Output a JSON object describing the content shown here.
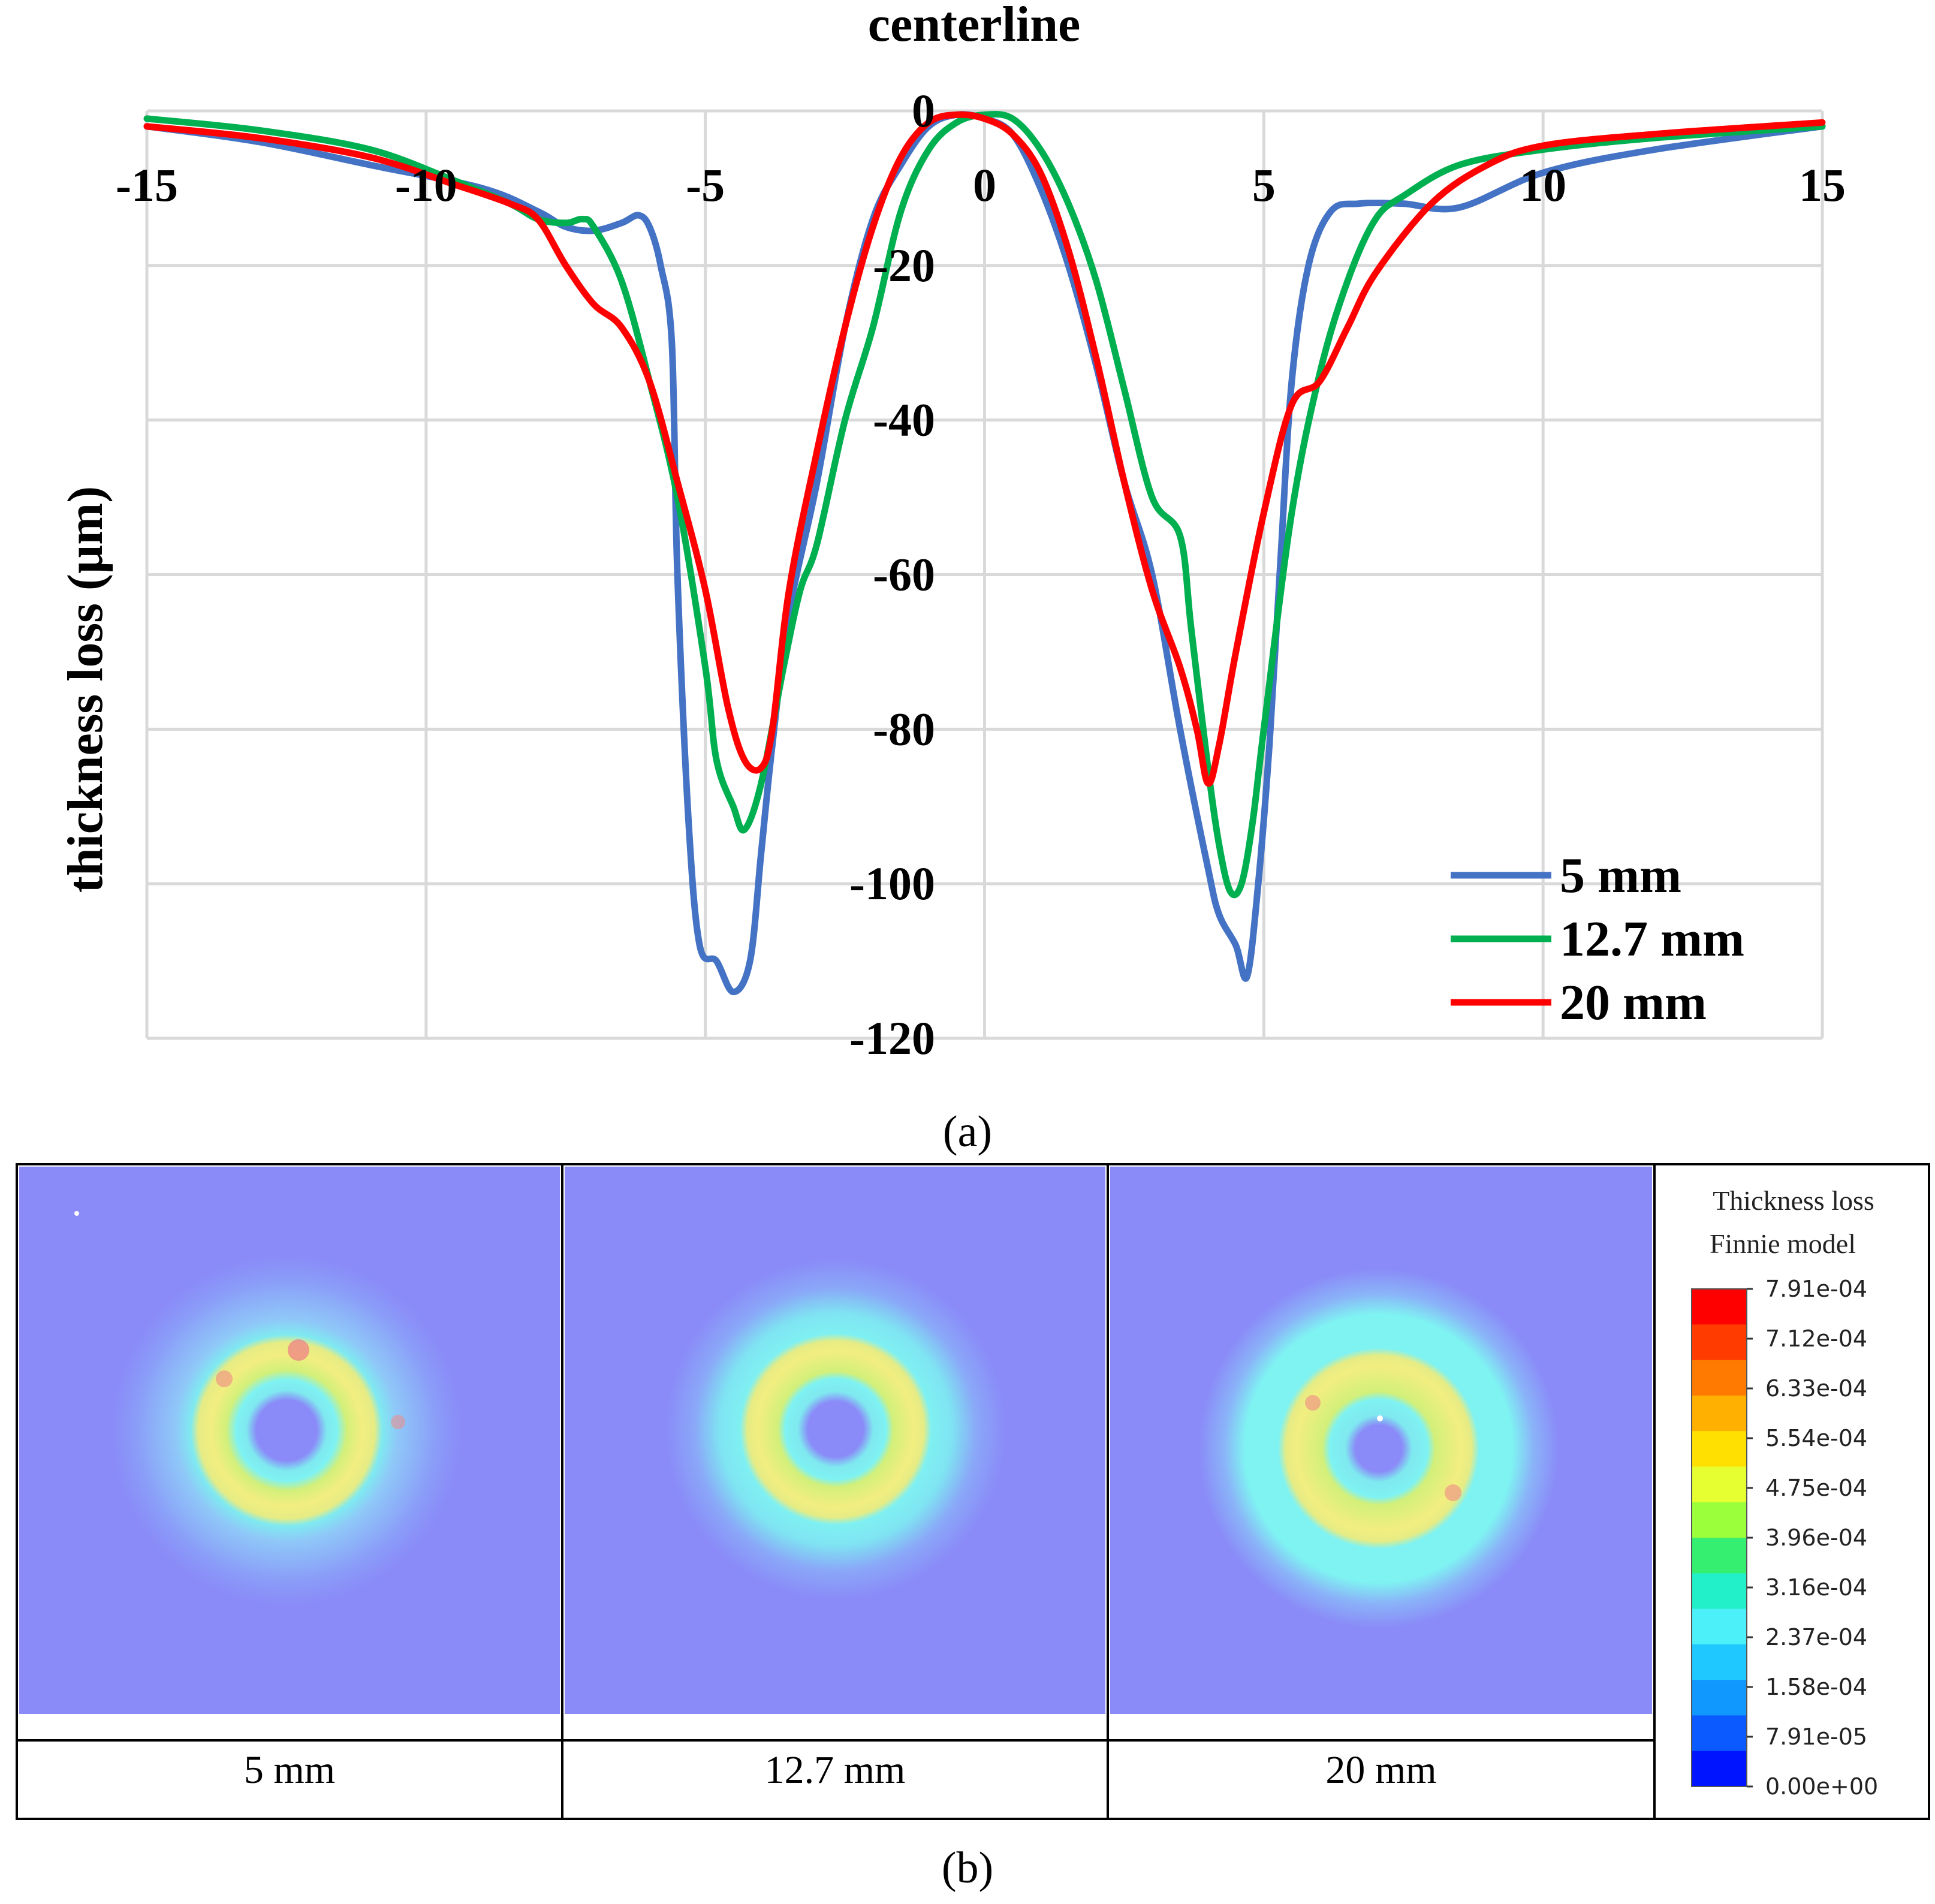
{
  "chart_data": [
    {
      "type": "line",
      "title": "centerline",
      "xlabel": "",
      "ylabel": "thickness loss (µm)",
      "xlim": [
        -15,
        15
      ],
      "ylim": [
        -120,
        0
      ],
      "grid": true,
      "x_ticks": [
        -15,
        -10,
        -5,
        0,
        5,
        10,
        15
      ],
      "y_ticks": [
        0,
        -20,
        -40,
        -60,
        -80,
        -100,
        -120
      ],
      "legend_position": "bottom-right",
      "series": [
        {
          "name": "5 mm",
          "color": "#4472C4",
          "x": [
            -15,
            -13,
            -11,
            -9,
            -8,
            -7.5,
            -7,
            -6.5,
            -6.2,
            -6,
            -5.8,
            -5.6,
            -5.5,
            -5.3,
            -5.1,
            -4.8,
            -4.5,
            -4.2,
            -4,
            -3.8,
            -3.5,
            -3,
            -2.5,
            -2,
            -1.5,
            -1,
            -0.5,
            0,
            0.5,
            1,
            1.5,
            2,
            2.5,
            3,
            3.5,
            4,
            4.2,
            4.5,
            4.7,
            4.9,
            5.1,
            5.3,
            5.5,
            5.8,
            6.2,
            6.7,
            7.5,
            8.5,
            10,
            12,
            15
          ],
          "y": [
            -2,
            -4,
            -7,
            -10,
            -13,
            -15,
            -15.5,
            -14.5,
            -13.5,
            -15,
            -20,
            -30,
            -60,
            -92,
            -108,
            -110,
            -114,
            -110,
            -96,
            -82,
            -65,
            -48,
            -28,
            -14,
            -7,
            -2,
            -0.5,
            -1,
            -3,
            -10,
            -20,
            -33,
            -48,
            -60,
            -80,
            -98,
            -104,
            -108,
            -112,
            -100,
            -82,
            -58,
            -35,
            -20,
            -13,
            -12,
            -12,
            -12.5,
            -8,
            -5,
            -2
          ]
        },
        {
          "name": "12.7 mm",
          "color": "#00B050",
          "x": [
            -15,
            -13,
            -11,
            -9.5,
            -8.5,
            -8,
            -7.5,
            -7.2,
            -7,
            -6.5,
            -6,
            -5.5,
            -5,
            -4.8,
            -4.5,
            -4.3,
            -4,
            -3.6,
            -3.3,
            -3,
            -2.5,
            -2,
            -1.5,
            -1,
            -0.5,
            0,
            0.5,
            1,
            1.5,
            2,
            2.5,
            3,
            3.5,
            3.7,
            4,
            4.2,
            4.4,
            4.6,
            4.8,
            5,
            5.5,
            6,
            6.5,
            7,
            7.5,
            8.5,
            10,
            12,
            15
          ],
          "y": [
            -1,
            -2.5,
            -5,
            -9,
            -12,
            -14,
            -14.5,
            -14,
            -15,
            -22,
            -35,
            -50,
            -72,
            -84,
            -90,
            -93,
            -87,
            -72,
            -62,
            -56,
            -40,
            -28,
            -13,
            -5,
            -1.5,
            -0.5,
            -1,
            -5,
            -12,
            -22,
            -36,
            -50,
            -55,
            -67,
            -85,
            -95,
            -101,
            -100,
            -92,
            -80,
            -52,
            -34,
            -22,
            -14,
            -11,
            -7,
            -5,
            -3.5,
            -2
          ]
        },
        {
          "name": "20 mm",
          "color": "#FF0000",
          "x": [
            -15,
            -13,
            -11,
            -9.5,
            -8.5,
            -8,
            -7.5,
            -7,
            -6.5,
            -6,
            -5.5,
            -5,
            -4.6,
            -4.3,
            -4,
            -3.8,
            -3.5,
            -3,
            -2.5,
            -2,
            -1.5,
            -1,
            -0.5,
            0,
            0.5,
            1,
            1.5,
            2,
            2.5,
            3,
            3.5,
            3.8,
            4,
            4.2,
            4.5,
            5,
            5.5,
            6,
            6.5,
            7,
            8,
            9,
            10,
            12,
            15
          ],
          "y": [
            -2,
            -3.5,
            -6,
            -9.5,
            -12,
            -14,
            -20,
            -25,
            -28,
            -35,
            -48,
            -62,
            -77,
            -84,
            -85,
            -80,
            -62,
            -44,
            -28,
            -15,
            -6,
            -1.5,
            -0.5,
            -1,
            -3,
            -8,
            -18,
            -32,
            -48,
            -62,
            -72,
            -80,
            -87,
            -82,
            -70,
            -52,
            -38,
            -35,
            -28,
            -21,
            -12,
            -7,
            -4.5,
            -3,
            -1.5
          ]
        }
      ]
    },
    {
      "type": "heatmap",
      "panels": [
        "5 mm",
        "12.7 mm",
        "20 mm"
      ],
      "colorbar": {
        "title_lines": [
          "Thickness loss",
          "Finnie model"
        ],
        "tick_labels": [
          "7.91e-04",
          "7.12e-04",
          "6.33e-04",
          "5.54e-04",
          "4.75e-04",
          "3.96e-04",
          "3.16e-04",
          "2.37e-04",
          "1.58e-04",
          "7.91e-05",
          "0.00e+00"
        ],
        "range": [
          0,
          0.000791
        ],
        "colors": [
          "#FF0000",
          "#FF3B00",
          "#FF7A00",
          "#FFB000",
          "#FFE000",
          "#E6FF30",
          "#9CFF3C",
          "#35F070",
          "#22F0C8",
          "#4CF0F8",
          "#1FC8FF",
          "#1098FF",
          "#0A5AFF",
          "#0014FF"
        ]
      }
    }
  ],
  "captions": {
    "a": "(a)",
    "b": "(b)"
  }
}
